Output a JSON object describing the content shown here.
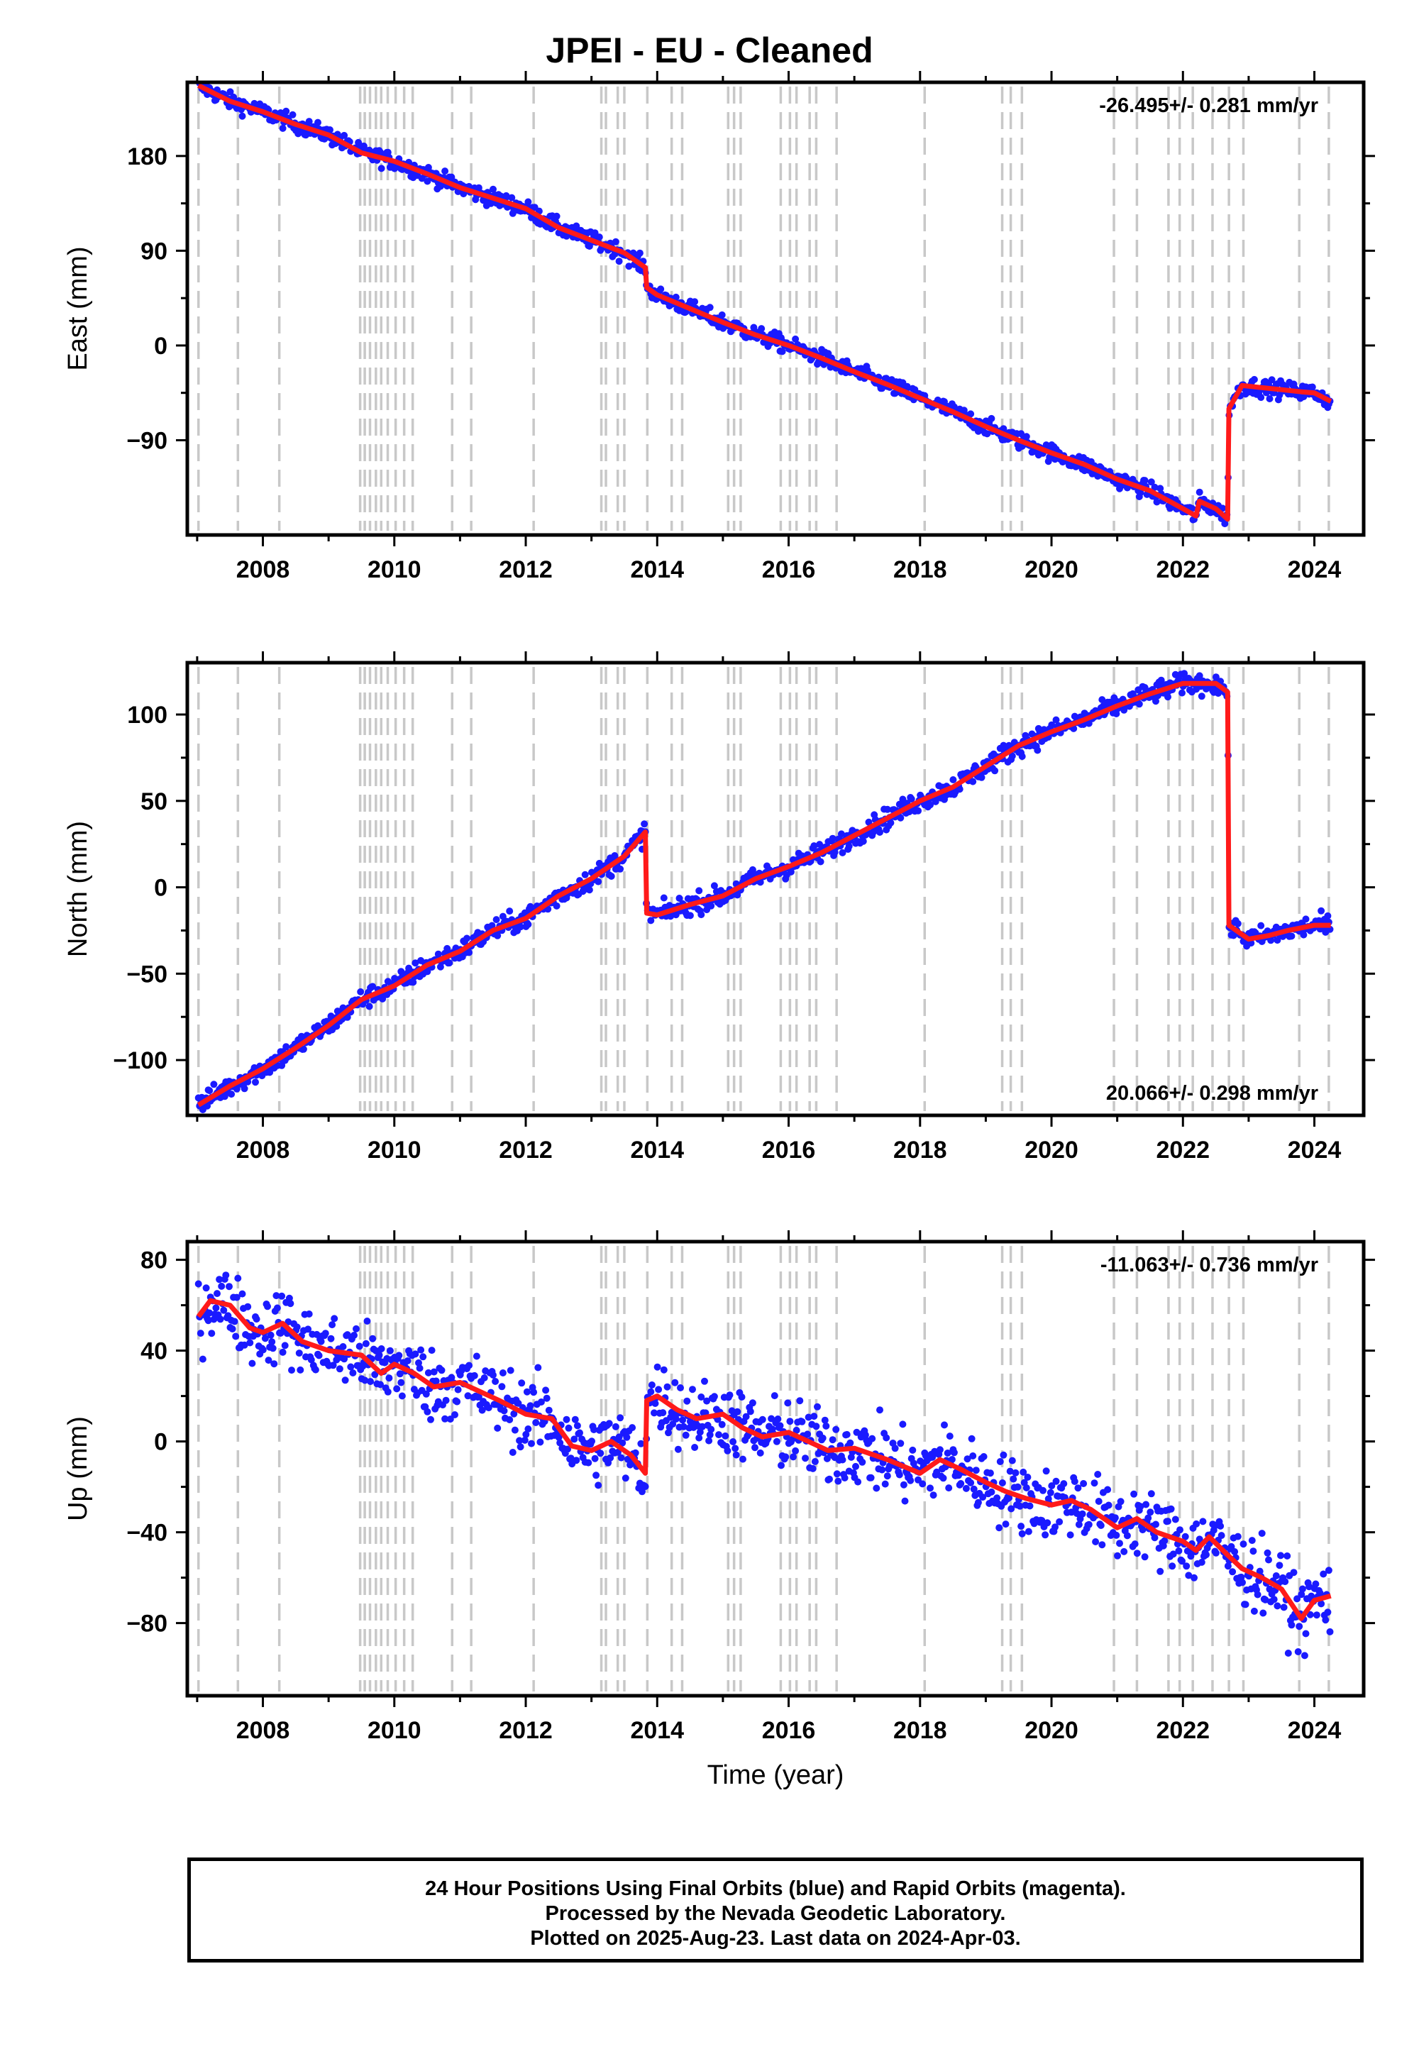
{
  "title": "JPEI  - EU - Cleaned",
  "xlabel": "Time (year)",
  "footer": {
    "line1": "24 Hour Positions Using Final Orbits (blue) and Rapid Orbits (magenta).",
    "line2": "Processed by the Nevada Geodetic Laboratory.",
    "line3": "Plotted on 2025-Aug-23. Last data on 2024-Apr-03."
  },
  "colors": {
    "points": "#1a1aff",
    "model": "#ff1a1a",
    "steps": "#c8c8c8",
    "frame": "#000000"
  },
  "chart_data": [
    {
      "type": "scatter",
      "component": "East",
      "ylabel": "East (mm)",
      "rate": "-26.495+/- 0.281 mm/yr",
      "rate_position": "top-right",
      "xlim": [
        2006.85,
        2024.75
      ],
      "ylim": [
        -180,
        250
      ],
      "x_ticks": [
        2008,
        2010,
        2012,
        2014,
        2016,
        2018,
        2020,
        2022,
        2024
      ],
      "y_ticks": [
        -90,
        0,
        90,
        180
      ],
      "series": [
        {
          "role": "model",
          "x": [
            2007.02,
            2007.5,
            2008.0,
            2008.5,
            2009.0,
            2009.5,
            2010.0,
            2010.5,
            2011.0,
            2011.5,
            2012.0,
            2012.5,
            2013.0,
            2013.5,
            2013.82,
            2013.84,
            2014.0,
            2014.5,
            2015.0,
            2015.5,
            2016.0,
            2016.5,
            2017.0,
            2017.5,
            2018.0,
            2018.5,
            2019.0,
            2019.5,
            2020.0,
            2020.5,
            2021.0,
            2021.5,
            2022.0,
            2022.2,
            2022.25,
            2022.5,
            2022.68,
            2022.7,
            2022.9,
            2023.2,
            2023.5,
            2023.8,
            2024.0,
            2024.25
          ],
          "y": [
            247,
            232,
            222,
            210,
            200,
            183,
            175,
            163,
            150,
            140,
            130,
            112,
            100,
            88,
            74,
            55,
            48,
            35,
            22,
            10,
            0,
            -12,
            -25,
            -37,
            -50,
            -63,
            -77,
            -90,
            -102,
            -113,
            -127,
            -138,
            -155,
            -162,
            -148,
            -155,
            -165,
            -60,
            -38,
            -40,
            -42,
            -44,
            -45,
            -53
          ]
        },
        {
          "role": "daily_positions",
          "scatter_mm": 4
        }
      ]
    },
    {
      "type": "scatter",
      "component": "North",
      "ylabel": "North (mm)",
      "rate": "20.066+/- 0.298 mm/yr",
      "rate_position": "bottom-right",
      "xlim": [
        2006.85,
        2024.75
      ],
      "ylim": [
        -132,
        130
      ],
      "x_ticks": [
        2008,
        2010,
        2012,
        2014,
        2016,
        2018,
        2020,
        2022,
        2024
      ],
      "y_ticks": [
        -100,
        -50,
        0,
        50,
        100
      ],
      "series": [
        {
          "role": "model",
          "x": [
            2007.02,
            2007.5,
            2008.0,
            2008.5,
            2009.0,
            2009.5,
            2010.0,
            2010.5,
            2011.0,
            2011.5,
            2012.0,
            2012.5,
            2013.0,
            2013.5,
            2013.82,
            2013.84,
            2014.0,
            2014.5,
            2015.0,
            2015.5,
            2016.0,
            2016.5,
            2017.0,
            2017.5,
            2018.0,
            2018.5,
            2019.0,
            2019.5,
            2020.0,
            2020.5,
            2021.0,
            2021.5,
            2022.0,
            2022.5,
            2022.68,
            2022.7,
            2023.0,
            2023.3,
            2023.6,
            2024.0,
            2024.25
          ],
          "y": [
            -126,
            -115,
            -105,
            -93,
            -80,
            -65,
            -57,
            -45,
            -37,
            -25,
            -18,
            -5,
            5,
            18,
            32,
            -15,
            -16,
            -10,
            -5,
            5,
            12,
            20,
            30,
            40,
            50,
            58,
            70,
            82,
            90,
            97,
            105,
            112,
            118,
            118,
            113,
            -22,
            -30,
            -28,
            -25,
            -22,
            -22
          ]
        },
        {
          "role": "daily_positions",
          "scatter_mm": 3
        }
      ]
    },
    {
      "type": "scatter",
      "component": "Up",
      "ylabel": "Up (mm)",
      "rate": "-11.063+/- 0.736 mm/yr",
      "rate_position": "top-right",
      "xlim": [
        2006.85,
        2024.75
      ],
      "ylim": [
        -112,
        88
      ],
      "x_ticks": [
        2008,
        2010,
        2012,
        2014,
        2016,
        2018,
        2020,
        2022,
        2024
      ],
      "y_ticks": [
        -80,
        -40,
        0,
        40,
        80
      ],
      "series": [
        {
          "role": "model",
          "x": [
            2007.02,
            2007.2,
            2007.5,
            2007.8,
            2008.0,
            2008.3,
            2008.6,
            2009.0,
            2009.5,
            2009.8,
            2010.0,
            2010.3,
            2010.6,
            2011.0,
            2011.3,
            2011.6,
            2012.0,
            2012.4,
            2012.7,
            2013.0,
            2013.3,
            2013.6,
            2013.82,
            2013.84,
            2014.0,
            2014.3,
            2014.6,
            2015.0,
            2015.3,
            2015.6,
            2016.0,
            2016.3,
            2016.6,
            2017.0,
            2017.5,
            2018.0,
            2018.3,
            2018.6,
            2019.0,
            2019.3,
            2019.6,
            2020.0,
            2020.3,
            2020.6,
            2021.0,
            2021.3,
            2021.6,
            2022.0,
            2022.2,
            2022.4,
            2022.68,
            2022.9,
            2023.2,
            2023.5,
            2023.8,
            2024.0,
            2024.25
          ],
          "y": [
            55,
            62,
            60,
            50,
            48,
            52,
            44,
            40,
            38,
            30,
            34,
            30,
            24,
            26,
            22,
            18,
            12,
            10,
            -2,
            -4,
            0,
            -6,
            -14,
            18,
            20,
            14,
            10,
            12,
            6,
            2,
            4,
            0,
            -4,
            -3,
            -8,
            -14,
            -8,
            -12,
            -18,
            -22,
            -25,
            -28,
            -26,
            -30,
            -38,
            -34,
            -40,
            -44,
            -48,
            -42,
            -50,
            -56,
            -60,
            -65,
            -78,
            -70,
            -68
          ]
        },
        {
          "role": "daily_positions",
          "scatter_mm": 8
        }
      ]
    }
  ],
  "step_epochs": [
    2007.02,
    2007.62,
    2008.25,
    2009.48,
    2009.55,
    2009.63,
    2009.72,
    2009.8,
    2009.9,
    2010.02,
    2010.15,
    2010.28,
    2010.88,
    2011.17,
    2012.12,
    2013.15,
    2013.22,
    2013.4,
    2013.5,
    2013.85,
    2014.22,
    2014.38,
    2015.08,
    2015.17,
    2015.27,
    2015.88,
    2016.02,
    2016.12,
    2016.32,
    2016.42,
    2016.73,
    2018.07,
    2019.25,
    2019.38,
    2019.55,
    2020.95,
    2021.3,
    2021.78,
    2021.95,
    2022.15,
    2022.45,
    2022.7,
    2022.92,
    2023.77,
    2024.22
  ]
}
